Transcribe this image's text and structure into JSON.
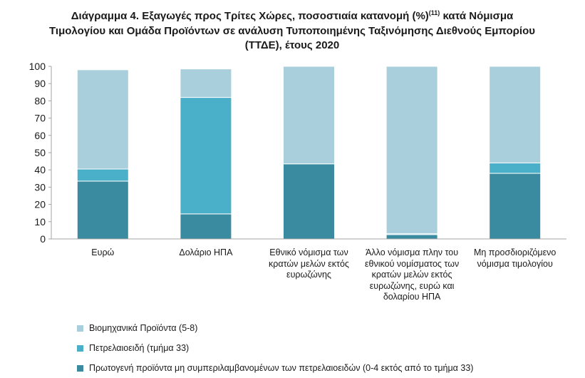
{
  "chart_data": {
    "type": "bar",
    "stacked": true,
    "title": "Διάγραμμα 4. Εξαγωγές προς Τρίτες Χώρες, ποσοστιαία κατανομή (%)",
    "title_sup": "(11)",
    "title_rest": " κατά Νόμισμα Τιμολογίου και Ομάδα Προϊόντων σε ανάλυση Τυποποιημένης Ταξινόμησης Διεθνούς Εμπορίου (ΤΤΔΕ), έτους 2020",
    "categories": [
      "Ευρώ",
      "Δολάριο ΗΠΑ",
      "Εθνικό νόμισμα των κρατών μελών εκτός ευρωζώνης",
      "Άλλο νόμισμα πλην του εθνικού νομίσματος των κρατών μελών εκτός ευρωζώνης, ευρώ και δολαρίου ΗΠΑ",
      "Μη προσδιοριζόμενο νόμισμα τιμολογίου"
    ],
    "series": [
      {
        "name": "Πρωτογενή προϊόντα μη συμπεριλαμβανομένων των πετρελαιοειδών (0-4 εκτός από το τμήμα 33)",
        "color": "#3a8aa0",
        "values": [
          33.5,
          14.5,
          43.5,
          2.5,
          38
        ]
      },
      {
        "name": "Πετρελαιοειδή (τμήμα 33)",
        "color": "#4aafc8",
        "values": [
          7,
          67.5,
          0,
          0.5,
          6
        ]
      },
      {
        "name": "Βιομηχανικά Προϊόντα (5-8)",
        "color": "#a9cfdd",
        "values": [
          57.5,
          16.5,
          56.5,
          97,
          56
        ]
      }
    ],
    "legend_order": [
      2,
      1,
      0
    ],
    "ylim": [
      0,
      100
    ],
    "yticks": [
      0,
      10,
      20,
      30,
      40,
      50,
      60,
      70,
      80,
      90,
      100
    ],
    "grid": false,
    "legend_position": "bottom"
  }
}
